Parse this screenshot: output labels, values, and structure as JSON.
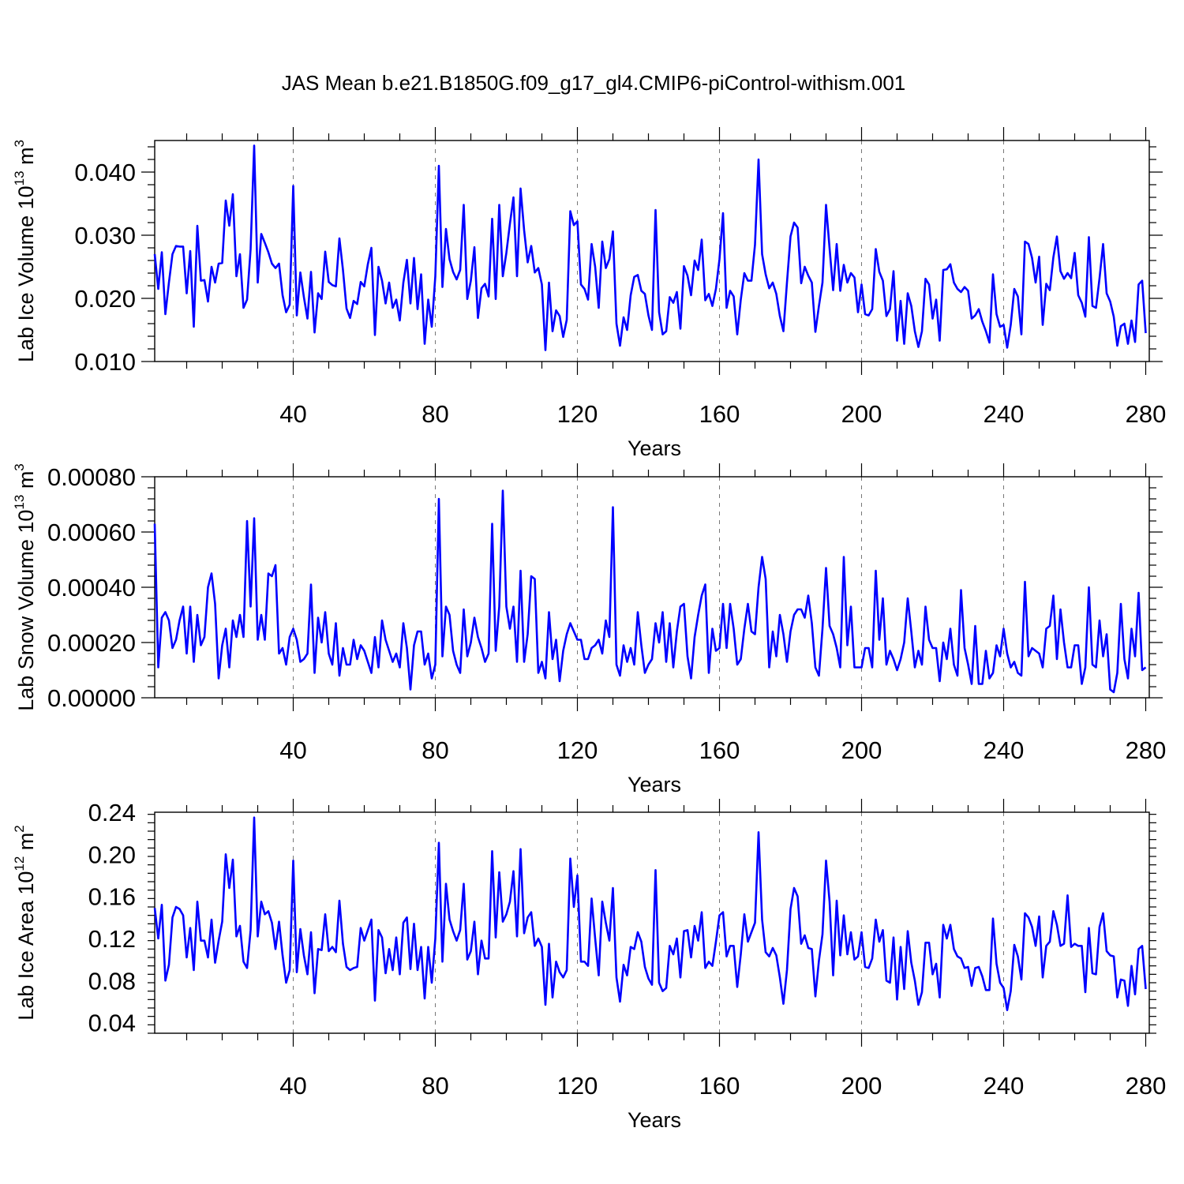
{
  "title": "JAS Mean b.e21.B1850G.f09_g17_gl4.CMIP6-piControl-withism.001",
  "colors": {
    "line": "#0000ff",
    "grid": "#777777",
    "axis": "#000000"
  },
  "chart_data": [
    {
      "type": "line",
      "xlabel": "Years",
      "ylabel_main": "Lab Ice Volume 10",
      "ylabel_exp": "13",
      "ylabel_unit": " m",
      "ylabel_unit_exp": "3",
      "xlim": [
        1,
        281
      ],
      "ylim": [
        0.01,
        0.045
      ],
      "x_ticks": [
        40,
        80,
        120,
        160,
        200,
        240,
        280
      ],
      "x_tick_labels": [
        "40",
        "80",
        "120",
        "160",
        "200",
        "240",
        "280"
      ],
      "y_ticks": [
        0.01,
        0.02,
        0.03,
        0.04
      ],
      "y_tick_labels": [
        "0.010",
        "0.020",
        "0.030",
        "0.040"
      ],
      "grid_x": [
        40,
        80,
        120,
        160,
        200,
        240
      ],
      "series": [
        {
          "name": "Lab Ice Volume",
          "x_start": 1,
          "x_step": 1,
          "values": [
            0.027,
            0.0215,
            0.0273,
            0.0175,
            0.0225,
            0.027,
            0.0283,
            0.0282,
            0.0282,
            0.0208,
            0.0275,
            0.0155,
            0.0315,
            0.0228,
            0.0229,
            0.0195,
            0.025,
            0.0225,
            0.0255,
            0.0256,
            0.0355,
            0.0315,
            0.0365,
            0.0235,
            0.027,
            0.0185,
            0.0198,
            0.0278,
            0.0442,
            0.0225,
            0.0302,
            0.0288,
            0.0273,
            0.0255,
            0.0248,
            0.0255,
            0.0205,
            0.0178,
            0.019,
            0.0378,
            0.0173,
            0.0241,
            0.0202,
            0.0168,
            0.0242,
            0.0146,
            0.0208,
            0.0199,
            0.0274,
            0.0226,
            0.0221,
            0.0219,
            0.0295,
            0.0245,
            0.0184,
            0.0169,
            0.0196,
            0.0191,
            0.0226,
            0.0219,
            0.0254,
            0.028,
            0.0142,
            0.025,
            0.0228,
            0.0192,
            0.0225,
            0.0185,
            0.0198,
            0.0165,
            0.0225,
            0.0261,
            0.0192,
            0.0264,
            0.0183,
            0.0238,
            0.0128,
            0.0198,
            0.0155,
            0.0235,
            0.041,
            0.0218,
            0.031,
            0.0262,
            0.0242,
            0.023,
            0.0245,
            0.0348,
            0.0199,
            0.0228,
            0.0281,
            0.0169,
            0.0216,
            0.0223,
            0.0203,
            0.0326,
            0.0199,
            0.0348,
            0.0235,
            0.0272,
            0.0318,
            0.036,
            0.0235,
            0.0374,
            0.0308,
            0.0257,
            0.0283,
            0.0241,
            0.0248,
            0.0222,
            0.0118,
            0.0225,
            0.0148,
            0.0181,
            0.0172,
            0.0139,
            0.0166,
            0.0338,
            0.0316,
            0.0322,
            0.0222,
            0.0215,
            0.0198,
            0.0286,
            0.025,
            0.0185,
            0.029,
            0.0248,
            0.0262,
            0.0306,
            0.016,
            0.0125,
            0.017,
            0.015,
            0.0205,
            0.0234,
            0.0237,
            0.0212,
            0.0207,
            0.0173,
            0.015,
            0.034,
            0.0178,
            0.0143,
            0.0148,
            0.0202,
            0.0193,
            0.021,
            0.0152,
            0.0251,
            0.0236,
            0.0205,
            0.026,
            0.0245,
            0.0293,
            0.0197,
            0.0207,
            0.0188,
            0.0215,
            0.0262,
            0.0335,
            0.0185,
            0.0212,
            0.0203,
            0.0143,
            0.0198,
            0.024,
            0.0228,
            0.0228,
            0.0285,
            0.042,
            0.027,
            0.0238,
            0.0216,
            0.0225,
            0.0207,
            0.0172,
            0.0148,
            0.0225,
            0.0298,
            0.032,
            0.0312,
            0.0224,
            0.025,
            0.0236,
            0.0225,
            0.0147,
            0.0188,
            0.0225,
            0.0348,
            0.0279,
            0.0213,
            0.0286,
            0.0212,
            0.0253,
            0.0225,
            0.024,
            0.0233,
            0.0178,
            0.0222,
            0.0175,
            0.0173,
            0.0183,
            0.0278,
            0.0242,
            0.0228,
            0.0172,
            0.0183,
            0.0243,
            0.0133,
            0.0196,
            0.0128,
            0.0208,
            0.0188,
            0.0148,
            0.0123,
            0.0148,
            0.0231,
            0.0222,
            0.0168,
            0.0198,
            0.0133,
            0.0245,
            0.0246,
            0.0254,
            0.0225,
            0.0215,
            0.021,
            0.0218,
            0.0212,
            0.0168,
            0.0173,
            0.0183,
            0.0163,
            0.0148,
            0.013,
            0.0238,
            0.0175,
            0.0155,
            0.0158,
            0.0122,
            0.0158,
            0.0215,
            0.0203,
            0.0143,
            0.029,
            0.0286,
            0.0264,
            0.0225,
            0.0266,
            0.0158,
            0.0223,
            0.0213,
            0.0265,
            0.0298,
            0.0243,
            0.0231,
            0.024,
            0.0232,
            0.0272,
            0.0205,
            0.0193,
            0.0171,
            0.0297,
            0.0188,
            0.0185,
            0.0232,
            0.0286,
            0.0208,
            0.0195,
            0.0171,
            0.0125,
            0.0156,
            0.016,
            0.0128,
            0.0165,
            0.0131,
            0.0222,
            0.0228,
            0.0145
          ]
        }
      ]
    },
    {
      "type": "line",
      "xlabel": "Years",
      "ylabel_main": "Lab Snow Volume 10",
      "ylabel_exp": "13",
      "ylabel_unit": " m",
      "ylabel_unit_exp": "3",
      "xlim": [
        1,
        281
      ],
      "ylim": [
        0.0,
        0.0008
      ],
      "x_ticks": [
        40,
        80,
        120,
        160,
        200,
        240,
        280
      ],
      "x_tick_labels": [
        "40",
        "80",
        "120",
        "160",
        "200",
        "240",
        "280"
      ],
      "y_ticks": [
        0.0,
        0.0002,
        0.0004,
        0.0006,
        0.0008
      ],
      "y_tick_labels": [
        "0.00000",
        "0.00020",
        "0.00040",
        "0.00060",
        "0.00080"
      ],
      "grid_x": [
        40,
        80,
        120,
        160,
        200,
        240
      ],
      "series": [
        {
          "name": "Lab Snow Volume",
          "x_start": 1,
          "x_step": 1,
          "values": [
            0.00063,
            0.00011,
            0.00029,
            0.00031,
            0.00028,
            0.00018,
            0.00021,
            0.00028,
            0.00033,
            0.00016,
            0.00033,
            0.00013,
            0.0003,
            0.00019,
            0.00022,
            0.0004,
            0.00045,
            0.00034,
            7e-05,
            0.00019,
            0.00025,
            0.00011,
            0.00028,
            0.00022,
            0.0003,
            0.00022,
            0.00064,
            0.00033,
            0.00065,
            0.00021,
            0.0003,
            0.00021,
            0.00045,
            0.00044,
            0.00048,
            0.00016,
            0.00018,
            0.00012,
            0.00022,
            0.00025,
            0.00021,
            0.00013,
            0.00014,
            0.00016,
            0.00041,
            9e-05,
            0.00029,
            0.0002,
            0.00031,
            0.00016,
            0.00012,
            0.00027,
            8e-05,
            0.00018,
            0.00012,
            0.00012,
            0.00021,
            0.00014,
            0.00019,
            0.00017,
            0.00013,
            9e-05,
            0.00022,
            0.00011,
            0.00028,
            0.00021,
            0.00017,
            0.00013,
            0.00016,
            0.00011,
            0.00027,
            0.00018,
            3e-05,
            0.00019,
            0.00024,
            0.00024,
            0.00012,
            0.00016,
            7e-05,
            0.00012,
            0.00072,
            0.00015,
            0.00033,
            0.0003,
            0.00017,
            0.00012,
            9e-05,
            0.00032,
            0.00015,
            0.0002,
            0.00029,
            0.00022,
            0.00018,
            0.00013,
            0.00016,
            0.00063,
            0.00017,
            0.00033,
            0.00075,
            0.00033,
            0.00025,
            0.00033,
            0.00013,
            0.00046,
            0.00013,
            0.00023,
            0.00044,
            0.00043,
            9e-05,
            0.00013,
            7e-05,
            0.00031,
            0.00014,
            0.00021,
            6e-05,
            0.00017,
            0.00023,
            0.00027,
            0.00024,
            0.00021,
            0.00021,
            0.00014,
            0.00014,
            0.00018,
            0.00019,
            0.00021,
            0.00016,
            0.00028,
            0.00022,
            0.00069,
            0.00012,
            8e-05,
            0.00019,
            0.00013,
            0.00018,
            0.00012,
            0.00031,
            0.00019,
            9e-05,
            0.00012,
            0.00014,
            0.00027,
            0.0002,
            0.00031,
            0.00013,
            0.00027,
            0.00011,
            0.00024,
            0.00033,
            0.00034,
            0.00015,
            7e-05,
            0.00022,
            0.0003,
            0.00037,
            0.00041,
            9e-05,
            0.00025,
            0.00017,
            0.00018,
            0.00034,
            0.00018,
            0.00034,
            0.00025,
            0.00012,
            0.00014,
            0.00025,
            0.00034,
            0.00024,
            0.00023,
            0.0004,
            0.00051,
            0.00043,
            0.00011,
            0.00024,
            0.00015,
            0.0003,
            0.00023,
            0.00013,
            0.00024,
            0.0003,
            0.00032,
            0.00032,
            0.00029,
            0.00037,
            0.00027,
            0.00011,
            8e-05,
            0.00025,
            0.00047,
            0.00026,
            0.00023,
            0.00018,
            0.00011,
            0.00051,
            0.00019,
            0.00033,
            0.00011,
            0.00011,
            0.00011,
            0.00018,
            0.00018,
            0.00011,
            0.00046,
            0.00021,
            0.00036,
            0.00012,
            0.00017,
            0.00014,
            0.0001,
            0.00014,
            0.0002,
            0.00036,
            0.00024,
            0.00011,
            0.00017,
            0.00012,
            0.00033,
            0.00021,
            0.00018,
            0.00018,
            6e-05,
            0.0002,
            0.00014,
            0.00025,
            0.00012,
            8e-05,
            0.00039,
            0.00018,
            0.00012,
            5e-05,
            0.00026,
            5e-05,
            5e-05,
            0.00017,
            7e-05,
            9e-05,
            0.00019,
            0.00015,
            0.00025,
            0.00016,
            0.00011,
            0.00013,
            9e-05,
            8e-05,
            0.00042,
            0.00015,
            0.00018,
            0.00017,
            0.00016,
            0.00011,
            0.00025,
            0.00026,
            0.00037,
            0.00014,
            0.00032,
            0.0002,
            0.00011,
            0.00011,
            0.00019,
            0.00019,
            5e-05,
            0.00011,
            0.0004,
            0.00012,
            0.00011,
            0.00028,
            0.00015,
            0.00023,
            3e-05,
            2e-05,
            9e-05,
            0.00034,
            0.00014,
            7e-05,
            0.00025,
            0.00015,
            0.00038,
            0.0001,
            0.00011
          ]
        }
      ]
    },
    {
      "type": "line",
      "xlabel": "Years",
      "ylabel_main": "Lab Ice Area 10",
      "ylabel_exp": "12",
      "ylabel_unit": " m",
      "ylabel_unit_exp": "2",
      "xlim": [
        1,
        281
      ],
      "ylim": [
        0.03,
        0.24
      ],
      "x_ticks": [
        40,
        80,
        120,
        160,
        200,
        240,
        280
      ],
      "x_tick_labels": [
        "40",
        "80",
        "120",
        "160",
        "200",
        "240",
        "280"
      ],
      "y_ticks": [
        0.04,
        0.08,
        0.12,
        0.16,
        0.2,
        0.24
      ],
      "y_tick_labels": [
        "0.04",
        "0.08",
        "0.12",
        "0.16",
        "0.20",
        "0.24"
      ],
      "grid_x": [
        40,
        80,
        120,
        160,
        200,
        240
      ],
      "series": [
        {
          "name": "Lab Ice Area",
          "x_start": 1,
          "x_step": 1,
          "values": [
            0.149,
            0.12,
            0.152,
            0.08,
            0.095,
            0.14,
            0.15,
            0.148,
            0.142,
            0.102,
            0.13,
            0.09,
            0.155,
            0.118,
            0.118,
            0.102,
            0.138,
            0.097,
            0.118,
            0.136,
            0.2,
            0.168,
            0.195,
            0.122,
            0.132,
            0.098,
            0.092,
            0.128,
            0.235,
            0.122,
            0.155,
            0.143,
            0.146,
            0.135,
            0.11,
            0.136,
            0.104,
            0.078,
            0.09,
            0.194,
            0.088,
            0.129,
            0.104,
            0.086,
            0.126,
            0.068,
            0.11,
            0.109,
            0.143,
            0.108,
            0.112,
            0.107,
            0.156,
            0.115,
            0.093,
            0.09,
            0.092,
            0.093,
            0.13,
            0.118,
            0.128,
            0.138,
            0.061,
            0.128,
            0.121,
            0.087,
            0.11,
            0.09,
            0.121,
            0.086,
            0.135,
            0.14,
            0.091,
            0.134,
            0.09,
            0.112,
            0.063,
            0.112,
            0.078,
            0.12,
            0.211,
            0.098,
            0.172,
            0.138,
            0.127,
            0.118,
            0.128,
            0.172,
            0.1,
            0.108,
            0.136,
            0.086,
            0.118,
            0.101,
            0.101,
            0.203,
            0.121,
            0.183,
            0.136,
            0.143,
            0.155,
            0.184,
            0.122,
            0.205,
            0.125,
            0.14,
            0.145,
            0.113,
            0.12,
            0.112,
            0.057,
            0.115,
            0.064,
            0.098,
            0.088,
            0.083,
            0.09,
            0.196,
            0.15,
            0.18,
            0.098,
            0.098,
            0.094,
            0.158,
            0.12,
            0.085,
            0.155,
            0.135,
            0.118,
            0.168,
            0.083,
            0.06,
            0.095,
            0.085,
            0.112,
            0.11,
            0.126,
            0.117,
            0.093,
            0.082,
            0.076,
            0.185,
            0.078,
            0.07,
            0.073,
            0.113,
            0.105,
            0.12,
            0.083,
            0.127,
            0.128,
            0.102,
            0.132,
            0.118,
            0.145,
            0.092,
            0.098,
            0.094,
            0.117,
            0.142,
            0.145,
            0.103,
            0.113,
            0.113,
            0.074,
            0.105,
            0.143,
            0.117,
            0.126,
            0.135,
            0.221,
            0.138,
            0.107,
            0.103,
            0.111,
            0.104,
            0.083,
            0.058,
            0.09,
            0.148,
            0.168,
            0.16,
            0.115,
            0.123,
            0.111,
            0.11,
            0.065,
            0.099,
            0.124,
            0.194,
            0.155,
            0.085,
            0.156,
            0.104,
            0.142,
            0.105,
            0.126,
            0.1,
            0.103,
            0.126,
            0.093,
            0.092,
            0.101,
            0.138,
            0.117,
            0.128,
            0.08,
            0.078,
            0.121,
            0.062,
            0.112,
            0.072,
            0.127,
            0.097,
            0.08,
            0.057,
            0.069,
            0.116,
            0.116,
            0.086,
            0.096,
            0.064,
            0.133,
            0.12,
            0.133,
            0.11,
            0.103,
            0.101,
            0.092,
            0.093,
            0.075,
            0.092,
            0.093,
            0.084,
            0.071,
            0.071,
            0.139,
            0.096,
            0.078,
            0.073,
            0.052,
            0.07,
            0.114,
            0.103,
            0.081,
            0.144,
            0.14,
            0.131,
            0.113,
            0.141,
            0.083,
            0.113,
            0.117,
            0.146,
            0.133,
            0.113,
            0.115,
            0.161,
            0.112,
            0.115,
            0.113,
            0.113,
            0.069,
            0.13,
            0.087,
            0.086,
            0.131,
            0.144,
            0.108,
            0.104,
            0.103,
            0.064,
            0.081,
            0.08,
            0.056,
            0.094,
            0.067,
            0.11,
            0.113,
            0.072
          ]
        }
      ]
    }
  ]
}
